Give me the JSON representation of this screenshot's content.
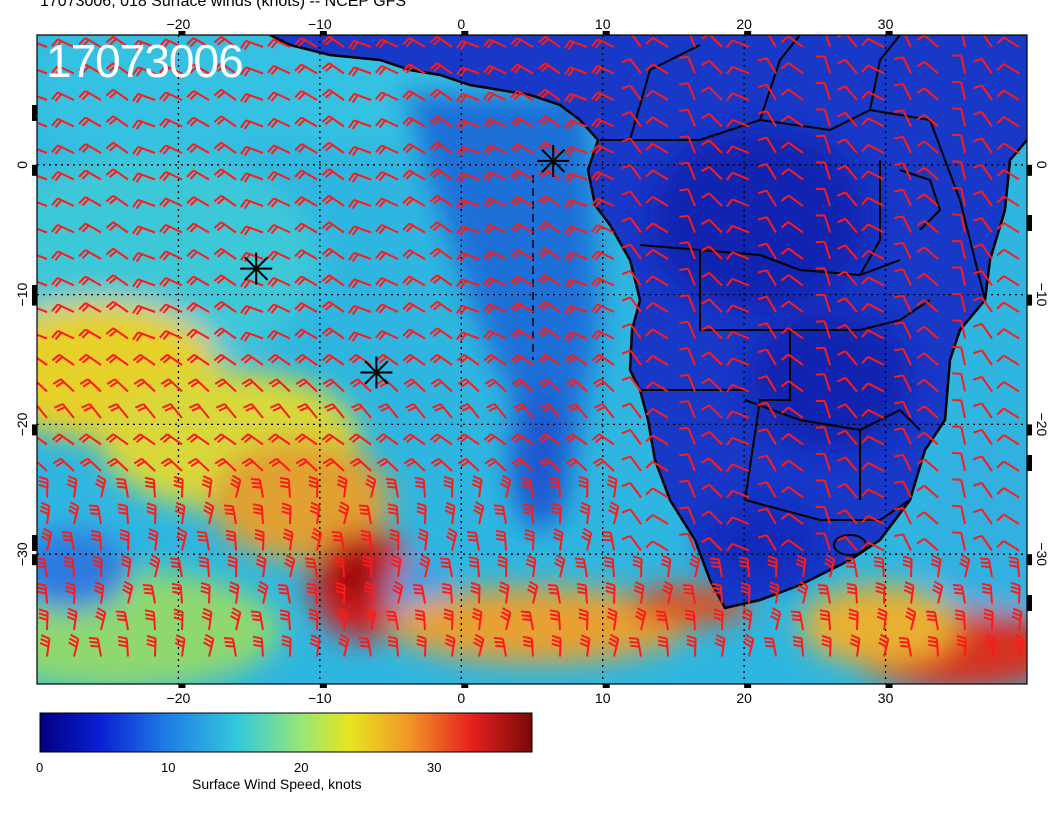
{
  "header": {
    "title": "17073006, 018 Surface winds (knots) -- NCEP GFS",
    "timestamp": "17073006"
  },
  "map": {
    "lon_ticks": [
      -20,
      -10,
      0,
      10,
      20,
      30
    ],
    "lat_ticks": [
      0,
      -10,
      -20,
      -30
    ],
    "lon_range": [
      -30,
      40
    ],
    "lat_range": [
      -40,
      10
    ],
    "markers": [
      {
        "type": "asterisk",
        "lon": 6.5,
        "lat": 0.3
      },
      {
        "type": "asterisk",
        "lon": -14.5,
        "lat": -8
      },
      {
        "type": "asterisk",
        "lon": -6,
        "lat": -16
      }
    ],
    "barb_color": "#ff1a1a",
    "coastline_color": "#000000"
  },
  "colorbar": {
    "ticks": [
      "0",
      "10",
      "20",
      "30"
    ],
    "title": "Surface Wind Speed, knots",
    "range": [
      0,
      37
    ],
    "colors": [
      "#000082",
      "#0a1ed2",
      "#1e78e6",
      "#32c8dc",
      "#96e678",
      "#e6e61e",
      "#f09628",
      "#e61e1e",
      "#780a0a"
    ]
  }
}
